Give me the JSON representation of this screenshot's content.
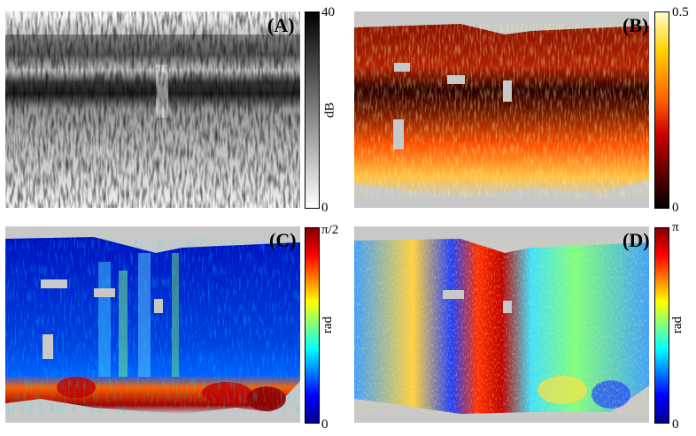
{
  "panels": [
    {
      "label": "(A)",
      "scale": "gray",
      "tick_top": "40",
      "tick_bottom": "0",
      "unit": "dB"
    },
    {
      "label": "(B)",
      "scale": "hot",
      "tick_top": "0.5",
      "tick_bottom": "0",
      "unit": ""
    },
    {
      "label": "(C)",
      "scale": "jet",
      "tick_top": "π/2",
      "tick_bottom": "0",
      "unit": "rad"
    },
    {
      "label": "(D)",
      "scale": "jet",
      "tick_top": "π",
      "tick_bottom": "0",
      "unit": "rad"
    }
  ],
  "colors": {
    "mask_gray": "#c8c8c8",
    "gray_scale": [
      "#ffffff",
      "#000000"
    ],
    "hot_scale": [
      "#000000",
      "#8b0000",
      "#ff3000",
      "#ffb000",
      "#ffffa0"
    ],
    "jet_scale": [
      "#00008f",
      "#0000ff",
      "#00ffff",
      "#ffff00",
      "#ff0000",
      "#800000"
    ]
  }
}
